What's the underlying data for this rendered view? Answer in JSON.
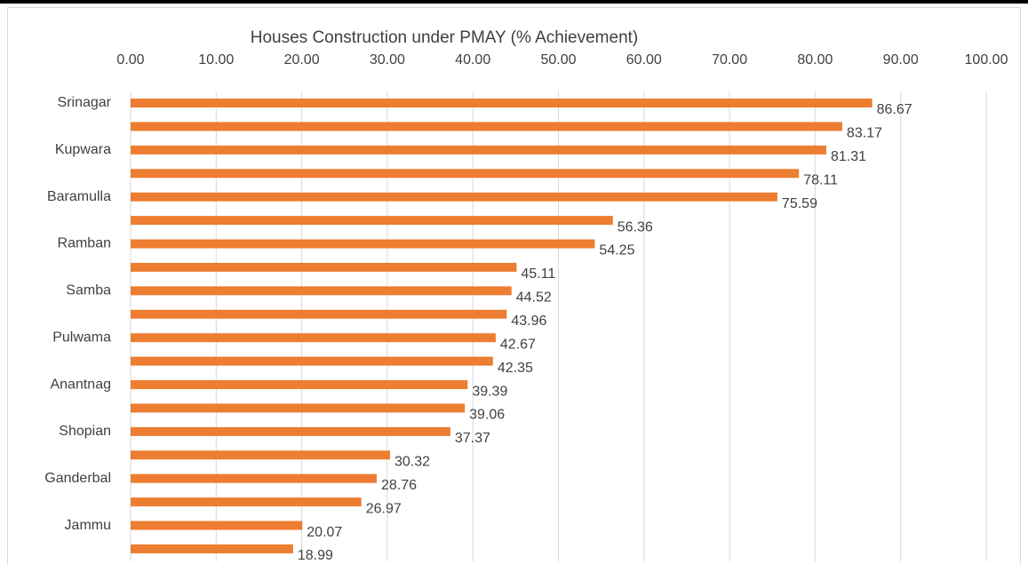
{
  "chart_data": {
    "type": "bar",
    "orientation": "horizontal",
    "title": "Houses Construction under PMAY (% Achievement)",
    "categories": [
      "Srinagar",
      null,
      "Kupwara",
      null,
      "Baramulla",
      null,
      "Ramban",
      null,
      "Samba",
      null,
      "Pulwama",
      null,
      "Anantnag",
      null,
      "Shopian",
      null,
      "Ganderbal",
      null,
      "Jammu",
      null
    ],
    "values": [
      86.67,
      83.17,
      81.31,
      78.11,
      75.59,
      56.36,
      54.25,
      45.11,
      44.52,
      43.96,
      42.67,
      42.35,
      39.39,
      39.06,
      37.37,
      30.32,
      28.76,
      26.97,
      20.07,
      18.99
    ],
    "color": "#ed7d31",
    "xlim": [
      0,
      100
    ],
    "xticks": [
      {
        "value": 0,
        "label": "0.00"
      },
      {
        "value": 10,
        "label": "10.00"
      },
      {
        "value": 20,
        "label": "20.00"
      },
      {
        "value": 30,
        "label": "30.00"
      },
      {
        "value": 40,
        "label": "40.00"
      },
      {
        "value": 50,
        "label": "50.00"
      },
      {
        "value": 60,
        "label": "60.00"
      },
      {
        "value": 70,
        "label": "70.00"
      },
      {
        "value": 80,
        "label": "80.00"
      },
      {
        "value": 90,
        "label": "90.00"
      },
      {
        "value": 100,
        "label": "100.00"
      }
    ],
    "grid": true
  }
}
